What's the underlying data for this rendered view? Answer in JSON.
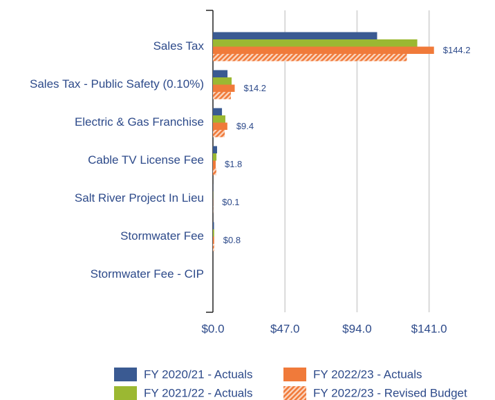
{
  "chart_data": {
    "type": "hbar",
    "categories": [
      "Sales Tax",
      "Sales Tax - Public Safety (0.10%)",
      "Electric & Gas Franchise",
      "Cable TV License Fee",
      "Salt River Project In Lieu",
      "Stormwater Fee",
      "Stormwater Fee - CIP"
    ],
    "series": [
      {
        "name": "FY 2020/21 - Actuals",
        "color": "#3a5a92",
        "values": [
          107.1,
          9.5,
          5.9,
          2.7,
          0.1,
          0.7,
          0
        ]
      },
      {
        "name": "FY 2021/22 - Actuals",
        "color": "#9bb832",
        "values": [
          133.3,
          12.2,
          8.1,
          2.3,
          0.1,
          0.8,
          0
        ]
      },
      {
        "name": "FY 2022/23 - Actuals",
        "color": "#f07a3a",
        "values": [
          144.2,
          14.2,
          9.4,
          1.8,
          0.1,
          0.8,
          0
        ],
        "value_labels": [
          "$144.2",
          "$14.2",
          "$9.4",
          "$1.8",
          "$0.1",
          "$0.8",
          null
        ]
      },
      {
        "name": "FY 2022/23 - Revised Budget",
        "color": "#f07a3a",
        "hatch": true,
        "values": [
          126.5,
          11.7,
          7.7,
          2.2,
          0.1,
          0.8,
          0
        ]
      }
    ],
    "xlim": [
      0,
      184
    ],
    "xticks": [
      {
        "value": 0,
        "label": "$0.0"
      },
      {
        "value": 47,
        "label": "$47.0"
      },
      {
        "value": 94,
        "label": "$94.0"
      },
      {
        "value": 141,
        "label": "$141.0"
      }
    ],
    "grid": true
  }
}
